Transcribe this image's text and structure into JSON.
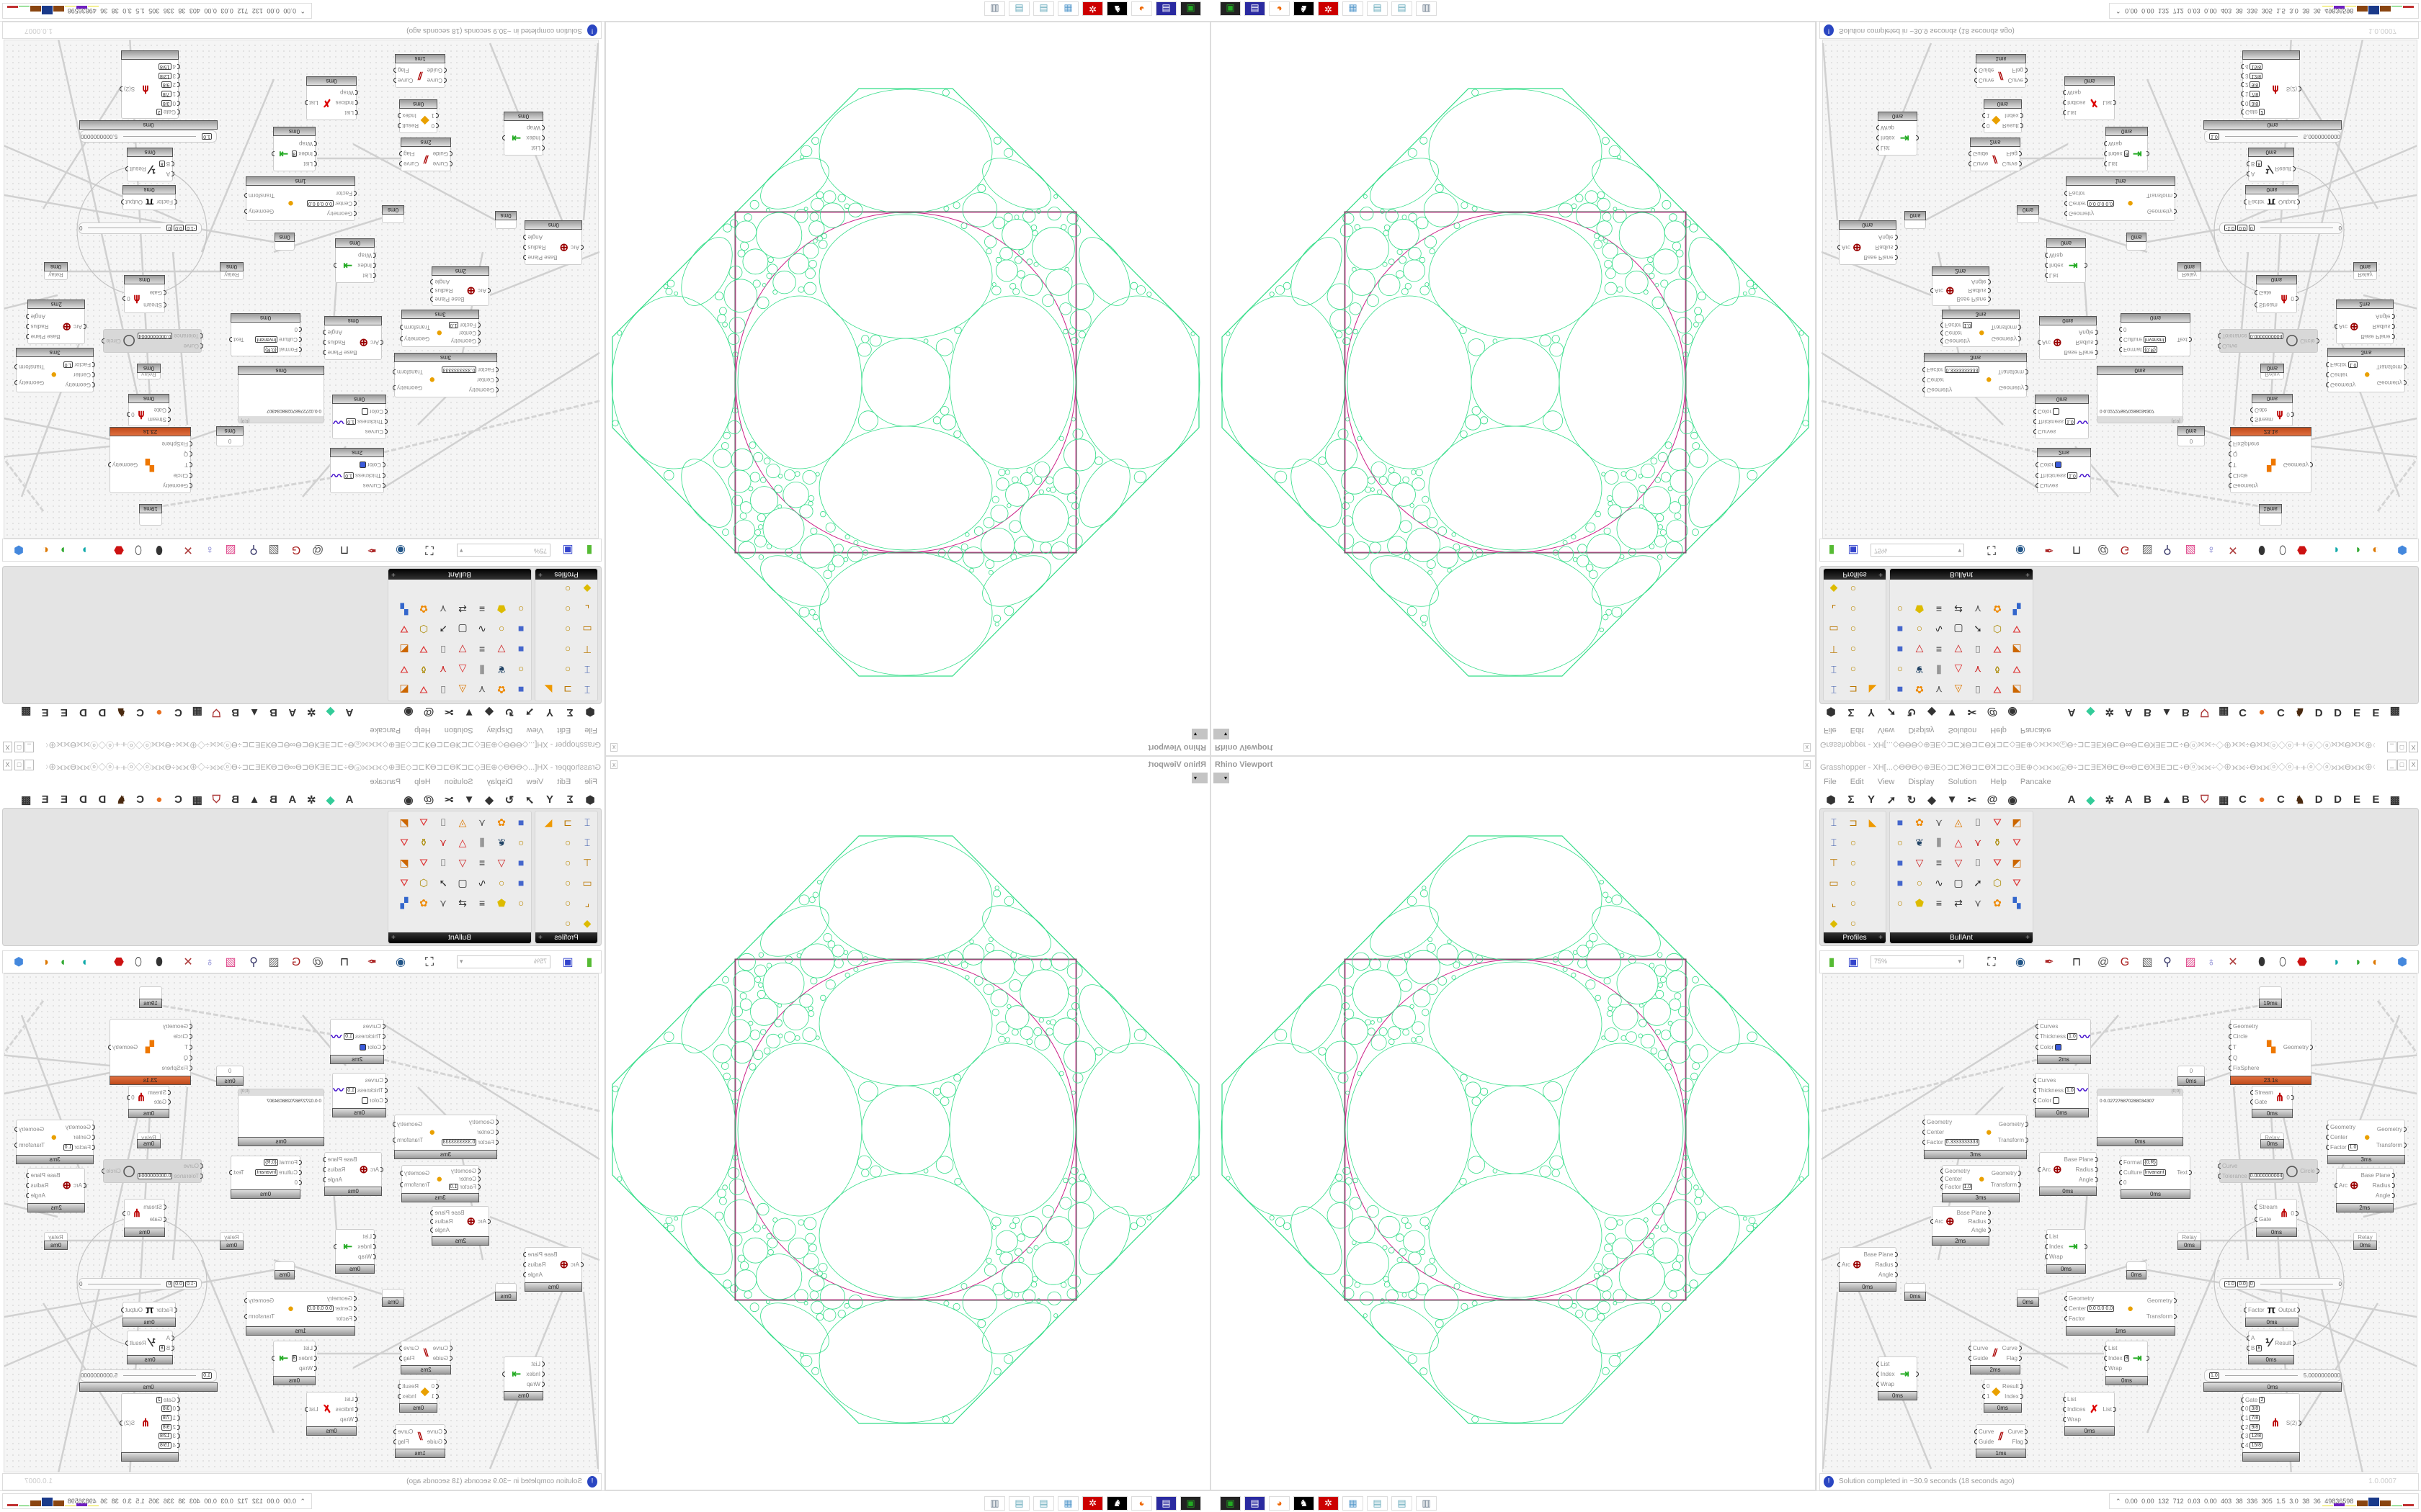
{
  "viewport": {
    "title": "Rhino Viewport",
    "close": "x",
    "dropdown": "▾",
    "colors": {
      "packing": "#33dd88",
      "boundary": "#cc2288",
      "frame": "#555555"
    }
  },
  "taskbar": {
    "icons": [
      "network-drive-icon",
      "save-64-icon",
      "firefox-icon",
      "rhino-icon",
      "settings-gear-red-icon",
      "calculator-icon",
      "notepad-icon",
      "notepad-icon",
      "printer-icon"
    ]
  },
  "grasshopper": {
    "title": "Grasshopper - XH[...◇ϴϴϴ◇⊕ƎE◇⊐⊏ꓘϴ⊐⊏ϴꓘ⊐⊏◇ƎE⊕◇⟗⟗⟗ⓞϴ÷⊐⊏ƎEꓘϴ⊏ϴ∞ϴ⊏ϴꓘƎE⊐⊏÷ϴⓞ⟗⟗÷◇⊕⟗⟗÷ϴ⟗⟗ⓞ◇ⓞ⟛⟛ⓞ◇ⓞ⟗⟗ϴ⟗⟗⊕◇⟗⟗⟗ⓞϴ÷⊐⊏ƎEꓘϴ⊏ϴ∞ϴ...",
    "window_buttons": [
      "_",
      "□",
      "X"
    ],
    "menu": [
      "File",
      "Edit",
      "View",
      "Display",
      "Solution",
      "Help",
      "Pancake"
    ],
    "ribbon_left": [
      "params-hexagon-icon",
      "maths-sigma-icon",
      "sets-tree-icon",
      "vector-arrow-icon",
      "curve-hook-icon",
      "surface-blob-icon",
      "mesh-funnel-icon",
      "intersect-scissors-icon",
      "transform-swirl-icon",
      "display-eye-icon"
    ],
    "ribbon_right": [
      {
        "glyph": "A",
        "name": "tab-a"
      },
      {
        "glyph": "◆",
        "name": "crystal-icon"
      },
      {
        "glyph": "✲",
        "name": "cog-icon"
      },
      {
        "glyph": "A",
        "name": "tab-a-2"
      },
      {
        "glyph": "B",
        "name": "tab-b"
      },
      {
        "glyph": "▲",
        "name": "mountain-icon"
      },
      {
        "glyph": "B",
        "name": "tab-b-2"
      },
      {
        "glyph": "⛉",
        "name": "shield-icon"
      },
      {
        "glyph": "▦",
        "name": "grid-icon"
      },
      {
        "glyph": "C",
        "name": "tab-c"
      },
      {
        "glyph": "●",
        "name": "orange-circle-icon"
      },
      {
        "glyph": "C",
        "name": "tab-c-2"
      },
      {
        "glyph": "♞",
        "name": "bird-icon"
      },
      {
        "glyph": "D",
        "name": "tab-d"
      },
      {
        "glyph": "D",
        "name": "tab-d-2"
      },
      {
        "glyph": "E",
        "name": "tab-e"
      },
      {
        "glyph": "E",
        "name": "tab-e-2"
      },
      {
        "glyph": "▩",
        "name": "pattern-icon"
      }
    ],
    "panels": {
      "profiles": {
        "label": "Profiles",
        "icons": [
          "i-beam",
          "channel",
          "flange",
          "i-beam",
          "ring",
          "",
          "t-section",
          "ring",
          "",
          "box-section",
          "ring",
          "",
          "l-angle",
          "ring",
          "",
          "gold-section",
          "ring",
          ""
        ]
      },
      "bullant": {
        "label": "BullAnt",
        "icons": [
          "cube",
          "flower",
          "fork",
          "triangle",
          "bracket",
          "frustum",
          "wedge",
          "ring",
          "leaf",
          "comb",
          "tri-red",
          "fork-red",
          "vase",
          "frustum",
          "cube",
          "tri",
          "lines",
          "tri",
          "bracket",
          "frustum",
          "wedge",
          "cube",
          "ring",
          "curve",
          "box",
          "arrow",
          "hex",
          "frustum",
          "ring",
          "gold",
          "lines",
          "arrows",
          "fork",
          "flower",
          "palette"
        ]
      }
    },
    "toolbar": {
      "zoom": "75%",
      "zoom_arrow": "▾",
      "icons": [
        "open-file-icon",
        "save-file-icon",
        "zoom-extents-icon",
        "preview-eye-icon",
        "sketch-pen-icon",
        "bifocals-icon",
        "mail-icon",
        "gha-icon",
        "canvas-icon",
        "search-icon",
        "package-icon",
        "bulb-icon",
        "wire-cross-icon",
        "shaded-icon",
        "wireframe-icon",
        "red-gem-icon",
        "teal-shape-icon",
        "green-shape-icon",
        "sphere-icon",
        "blue-orb-icon"
      ]
    },
    "status": {
      "icon": "!",
      "text": "Solution completed in ~30.9 seconds (18 seconds ago)",
      "version": "1.0.0007"
    },
    "strip": {
      "arrow": "⌃",
      "numbers": "0.00 0.00 132 712 0.03 0.00 403 38 336 305 1.5 3.0 38 36 49836598",
      "bars": [
        {
          "color": "#e8e020",
          "level": 0.1
        },
        {
          "color": "#7020c0",
          "level": 0.3
        },
        {
          "color": "#e8e020",
          "level": 0.1
        },
        {
          "color": "#8a4510",
          "level": 0.7
        },
        {
          "color": "#1a3a8a",
          "level": 1.0
        },
        {
          "color": "#8a4510",
          "level": 0.65
        },
        {
          "color": "#30c030",
          "level": 0.1
        },
        {
          "color": "#c03030",
          "level": 0.25
        }
      ]
    },
    "canvas": {
      "nodes": [
        {
          "type": "component",
          "icon": "preview-brush-icon",
          "time": "2ms",
          "inputs": [
            {
              "label": "Curves"
            },
            {
              "label": "Thickness",
              "value": "1.0"
            },
            {
              "label": "Color",
              "swatch": "#3b5bdb"
            }
          ],
          "outputs": []
        },
        {
          "type": "component",
          "icon": "preview-brush-icon",
          "time": "0ms",
          "inputs": [
            {
              "label": "Curves"
            },
            {
              "label": "Thickness",
              "value": "1.0"
            },
            {
              "label": "Color",
              "swatch": "#ffffff"
            }
          ],
          "outputs": []
        },
        {
          "type": "component",
          "icon": "scale-icon",
          "time": "3ms",
          "inputs": [
            {
              "label": "Geometry"
            },
            {
              "label": "Center"
            },
            {
              "label": "Factor",
              "value": "0.3333333333"
            }
          ],
          "outputs": [
            {
              "label": "Geometry"
            },
            {
              "label": "Transform"
            }
          ]
        },
        {
          "type": "component",
          "icon": "scale-icon",
          "time": "3ms",
          "inputs": [
            {
              "label": "Geometry"
            },
            {
              "label": "Center"
            },
            {
              "label": "Factor",
              "value": "1.0"
            }
          ],
          "outputs": [
            {
              "label": "Geometry"
            },
            {
              "label": "Transform"
            }
          ]
        },
        {
          "type": "component",
          "icon": "arc-target-icon",
          "time": "0ms",
          "inputs": [
            {
              "label": "Arc"
            }
          ],
          "outputs": [
            {
              "label": "Base Plane"
            },
            {
              "label": "Radius"
            },
            {
              "label": "Angle"
            }
          ]
        },
        {
          "type": "component",
          "icon": "kangaroo-icon",
          "time": "23.1s",
          "state": "slow",
          "inputs": [
            {
              "label": "Geometry"
            },
            {
              "label": "Circle"
            },
            {
              "label": "T"
            },
            {
              "label": "Q"
            },
            {
              "label": "FixSphere"
            }
          ],
          "outputs": [
            {
              "label": "Geometry"
            }
          ]
        },
        {
          "type": "param",
          "label": "0",
          "time": "0ms"
        },
        {
          "type": "panel",
          "header": "{0;0}",
          "text": "0 0.027276870288034307",
          "time": "0ms"
        },
        {
          "type": "component",
          "icon": "stream-gate-icon",
          "time": "0ms",
          "inputs": [
            {
              "label": "Stream"
            },
            {
              "label": "Gate"
            }
          ],
          "outputs": [
            {
              "label": "0"
            }
          ]
        },
        {
          "type": "param",
          "label": "Relay",
          "time": "0ms"
        },
        {
          "type": "component",
          "icon": "",
          "time": "0ms",
          "inputs": [
            {
              "label": "Format",
              "value": "{0;R}"
            },
            {
              "label": "Culture",
              "value": "Invariant"
            },
            {
              "label": "0"
            }
          ],
          "outputs": [
            {
              "label": "Text"
            }
          ]
        },
        {
          "type": "disabled",
          "icon": "circle-fit-icon",
          "inputs": [
            {
              "label": "Curve"
            },
            {
              "label": "Tolerance",
              "value": "0.0000000004"
            }
          ],
          "outputs": [
            {
              "label": "Circle"
            }
          ]
        },
        {
          "type": "component",
          "icon": "scale-icon",
          "time": "3ms",
          "inputs": [
            {
              "label": "Geometry"
            },
            {
              "label": "Center"
            },
            {
              "label": "Factor",
              "value": "1.0"
            }
          ],
          "outputs": [
            {
              "label": "Geometry"
            },
            {
              "label": "Transform"
            }
          ]
        },
        {
          "type": "component",
          "icon": "arc-target-icon",
          "time": "2ms",
          "inputs": [
            {
              "label": "Arc"
            }
          ],
          "outputs": [
            {
              "label": "Base Plane"
            },
            {
              "label": "Radius"
            },
            {
              "label": "Angle"
            }
          ]
        },
        {
          "type": "component",
          "icon": "arc-target-icon",
          "time": "0ms",
          "inputs": [
            {
              "label": "Arc"
            }
          ],
          "outputs": [
            {
              "label": "Base Plane"
            },
            {
              "label": "Radius"
            },
            {
              "label": "Angle"
            }
          ]
        },
        {
          "type": "component",
          "icon": "arc-target-icon",
          "time": "2ms",
          "inputs": [
            {
              "label": "Arc"
            }
          ],
          "outputs": [
            {
              "label": "Base Plane"
            },
            {
              "label": "Radius"
            },
            {
              "label": "Angle"
            }
          ]
        },
        {
          "type": "param",
          "label": "",
          "time": "0ms"
        },
        {
          "type": "component",
          "icon": "list-item-icon",
          "time": "0ms",
          "inputs": [
            {
              "label": "List"
            },
            {
              "label": "Index"
            },
            {
              "label": "Wrap"
            }
          ],
          "outputs": [
            {
              "label": ""
            }
          ]
        },
        {
          "type": "param",
          "label": "",
          "time": "0ms"
        },
        {
          "type": "param",
          "label": "",
          "time": "0ms"
        },
        {
          "type": "component",
          "icon": "scale-icon",
          "time": "1ms",
          "inputs": [
            {
              "label": "Geometry"
            },
            {
              "label": "Center",
              "value": "0.0 0.0 0.0"
            },
            {
              "label": "Factor"
            }
          ],
          "outputs": [
            {
              "label": "Geometry"
            },
            {
              "label": "Transform"
            }
          ]
        },
        {
          "type": "param",
          "label": "Relay",
          "time": "0ms"
        },
        {
          "type": "param",
          "label": "Relay",
          "time": "0ms"
        },
        {
          "type": "component",
          "icon": "stream-gate-icon",
          "time": "0ms",
          "inputs": [
            {
              "label": "Stream"
            },
            {
              "label": "Gate"
            }
          ],
          "outputs": [
            {
              "label": "0"
            }
          ]
        },
        {
          "type": "slider",
          "values": [
            "-1.0",
            "0.0",
            "0"
          ],
          "end": "0"
        },
        {
          "type": "component",
          "icon": "pi-icon",
          "time": "0ms",
          "inputs": [
            {
              "label": "Factor"
            }
          ],
          "outputs": [
            {
              "label": "Output"
            }
          ]
        },
        {
          "type": "component",
          "icon": "division-icon",
          "time": "0ms",
          "inputs": [
            {
              "label": "A"
            },
            {
              "label": "B",
              "value": "8"
            }
          ],
          "outputs": [
            {
              "label": "Result"
            }
          ]
        },
        {
          "type": "slider",
          "values": [
            "1.0"
          ],
          "end": "5.0000000000",
          "time": "0ms"
        },
        {
          "type": "component",
          "icon": "stream-filter-icon",
          "time": "",
          "inputs": [
            {
              "label": "Gate",
              "value": "2"
            },
            {
              "label": "0",
              "value": "3/8"
            },
            {
              "label": "1",
              "value": "7/8"
            },
            {
              "label": "2",
              "value": "9/8"
            },
            {
              "label": "3",
              "value": "12/8"
            },
            {
              "label": "4",
              "value": "15/8"
            }
          ],
          "outputs": [
            {
              "label": "S(2)"
            }
          ]
        },
        {
          "type": "component",
          "icon": "list-item-icon",
          "time": "0ms",
          "inputs": [
            {
              "label": "List"
            },
            {
              "label": "Index"
            },
            {
              "label": "Wrap"
            }
          ],
          "outputs": [
            {
              "label": ""
            }
          ]
        },
        {
          "type": "component",
          "icon": "flip-curve-icon",
          "time": "2ms",
          "inputs": [
            {
              "label": "Curve"
            },
            {
              "label": "Guide"
            }
          ],
          "outputs": [
            {
              "label": "Curve"
            },
            {
              "label": "Flag"
            }
          ]
        },
        {
          "type": "component",
          "icon": "list-item-icon",
          "time": "0ms",
          "inputs": [
            {
              "label": "List"
            },
            {
              "label": "Index",
              "value": "8"
            },
            {
              "label": "Wrap"
            }
          ],
          "outputs": [
            {
              "label": ""
            }
          ]
        },
        {
          "type": "component",
          "icon": "dispatch-icon",
          "time": "0ms",
          "inputs": [
            {
              "label": "0"
            },
            {
              "label": "1"
            }
          ],
          "outputs": [
            {
              "label": "Result"
            },
            {
              "label": "Index"
            }
          ]
        },
        {
          "type": "component",
          "icon": "cull-index-icon",
          "time": "0ms",
          "inputs": [
            {
              "label": "List"
            },
            {
              "label": "Indices"
            },
            {
              "label": "Wrap"
            }
          ],
          "outputs": [
            {
              "label": "List"
            }
          ]
        },
        {
          "type": "component",
          "icon": "flip-curve-icon",
          "time": "1ms",
          "inputs": [
            {
              "label": "Curve"
            },
            {
              "label": "Guide"
            }
          ],
          "outputs": [
            {
              "label": "Curve"
            },
            {
              "label": "Flag"
            }
          ]
        },
        {
          "type": "param",
          "label": "",
          "time": "19ms"
        }
      ]
    }
  }
}
